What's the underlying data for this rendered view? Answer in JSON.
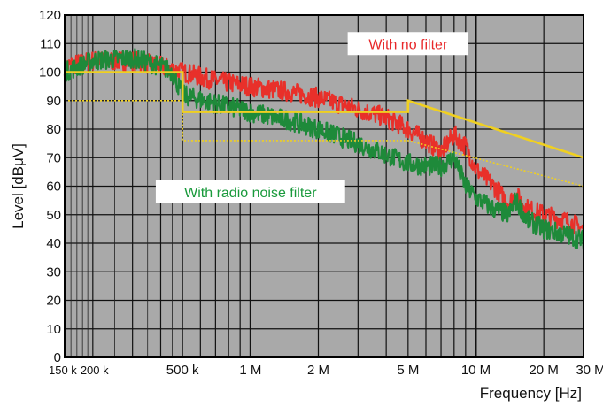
{
  "chart_data": {
    "type": "line",
    "xscale": "log",
    "xlim": [
      150000,
      30000000
    ],
    "ylim": [
      0,
      120
    ],
    "grid": true,
    "xlabel": "Frequency [Hz]",
    "ylabel": "Level [dBμV]",
    "x_tick_labels": [
      {
        "value": 150000,
        "label": "150 k"
      },
      {
        "value": 200000,
        "label": "200 k"
      },
      {
        "value": 500000,
        "label": "500 k"
      },
      {
        "value": 1000000,
        "label": "1 M"
      },
      {
        "value": 2000000,
        "label": "2 M"
      },
      {
        "value": 5000000,
        "label": "5 M"
      },
      {
        "value": 10000000,
        "label": "10 M"
      },
      {
        "value": 20000000,
        "label": "20 M"
      },
      {
        "value": 30000000,
        "label": "30 M"
      }
    ],
    "y_ticks": [
      0,
      10,
      20,
      30,
      40,
      50,
      60,
      70,
      80,
      90,
      100,
      110,
      120
    ],
    "annotations": [
      {
        "text": "With no filter",
        "color": "#e8282a",
        "x": 5000000,
        "y": 110
      },
      {
        "text": "With radio noise filter",
        "color": "#1a9a3c",
        "x": 1000000,
        "y": 58
      }
    ],
    "series": [
      {
        "style": "noisy-line",
        "color": "#e8302a",
        "x": [
          150000,
          200000,
          300000,
          400000,
          500000,
          700000,
          1000000,
          1500000,
          2000000,
          3000000,
          4000000,
          5000000,
          6000000,
          7000000,
          8000000,
          9000000,
          10000000,
          12000000,
          14000000,
          15000000,
          17000000,
          20000000,
          25000000,
          30000000
        ],
        "y": [
          102,
          104,
          104,
          102,
          100,
          97,
          95,
          93,
          91,
          87,
          84,
          80,
          76,
          72,
          78,
          74,
          66,
          60,
          54,
          57,
          52,
          50,
          48,
          45
        ]
      },
      {
        "style": "noisy-line",
        "color": "#1e8a3a",
        "x": [
          150000,
          200000,
          300000,
          400000,
          450000,
          500000,
          700000,
          1000000,
          1500000,
          2000000,
          3000000,
          4000000,
          5000000,
          6000000,
          7000000,
          8000000,
          9000000,
          10000000,
          12000000,
          14000000,
          15000000,
          17000000,
          20000000,
          25000000,
          30000000
        ],
        "y": [
          100,
          104,
          105,
          102,
          100,
          92,
          89,
          86,
          83,
          80,
          75,
          71,
          68,
          67,
          67,
          70,
          60,
          56,
          52,
          50,
          55,
          48,
          45,
          43,
          41
        ]
      },
      {
        "style": "limit-line",
        "color": "#f0d020",
        "x": [
          150000,
          500000,
          500000,
          5000000,
          5000000,
          30000000
        ],
        "y": [
          100,
          100,
          86,
          86,
          90,
          70
        ]
      },
      {
        "style": "limit-dotted",
        "color": "#f0d020",
        "x": [
          150000,
          500000,
          500000,
          5000000,
          5000000,
          30000000
        ],
        "y": [
          90,
          90,
          76,
          76,
          76,
          60
        ]
      }
    ]
  }
}
